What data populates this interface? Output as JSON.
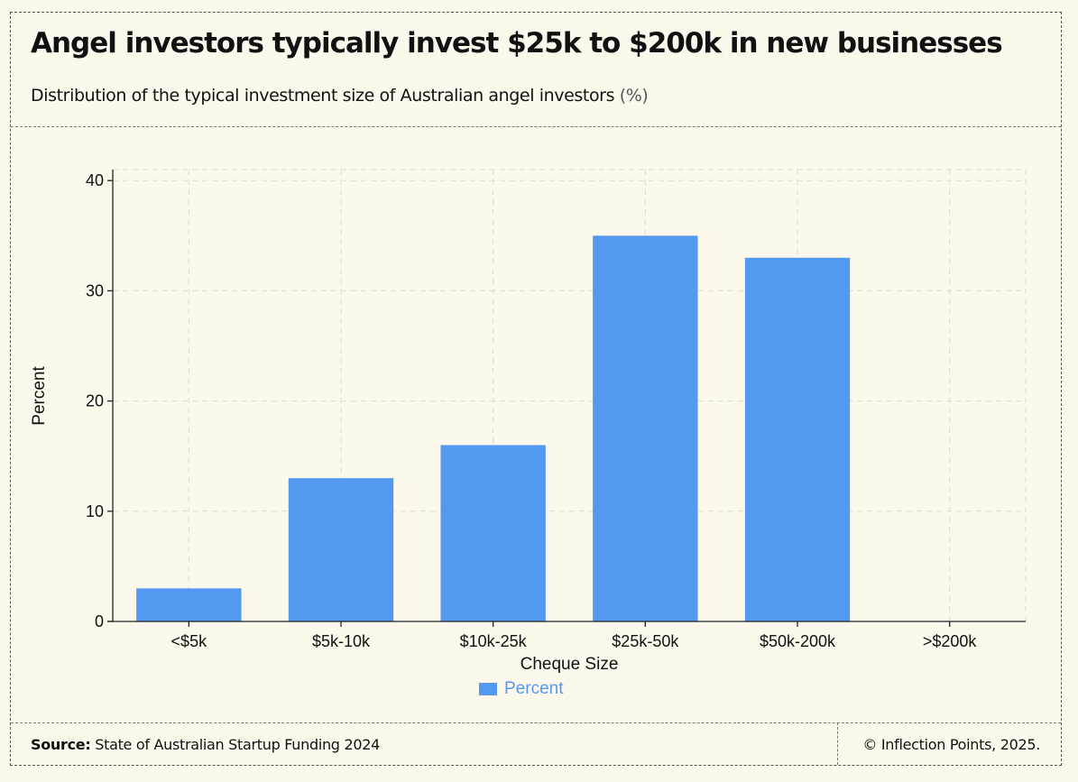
{
  "header": {
    "title": "Angel investors typically invest $25k to $200k in new businesses",
    "subtitle": "Distribution of the typical investment size of Australian angel investors",
    "subtitle_unit": "(%)"
  },
  "footer": {
    "source_label": "Source:",
    "source_text": "State of Australian Startup Funding 2024",
    "copyright": "© Inflection Points, 2025."
  },
  "colors": {
    "bar": "#5399ef",
    "grid": "#e2dccc",
    "axis": "#222222",
    "background": "#fdf8ec"
  },
  "chart_data": {
    "type": "bar",
    "categories": [
      "<$5k",
      "$5k-10k",
      "$10k-25k",
      "$25k-50k",
      "$50k-200k",
      ">$200k"
    ],
    "series": [
      {
        "name": "Percent",
        "values": [
          3,
          13,
          16,
          35,
          33,
          0
        ]
      }
    ],
    "title": "Angel investors typically invest $25k to $200k in new businesses",
    "xlabel": "Cheque Size",
    "ylabel": "Percent",
    "ylim": [
      0,
      41
    ],
    "yticks": [
      0,
      10,
      20,
      30,
      40
    ],
    "grid": true,
    "legend": "bottom-center"
  }
}
